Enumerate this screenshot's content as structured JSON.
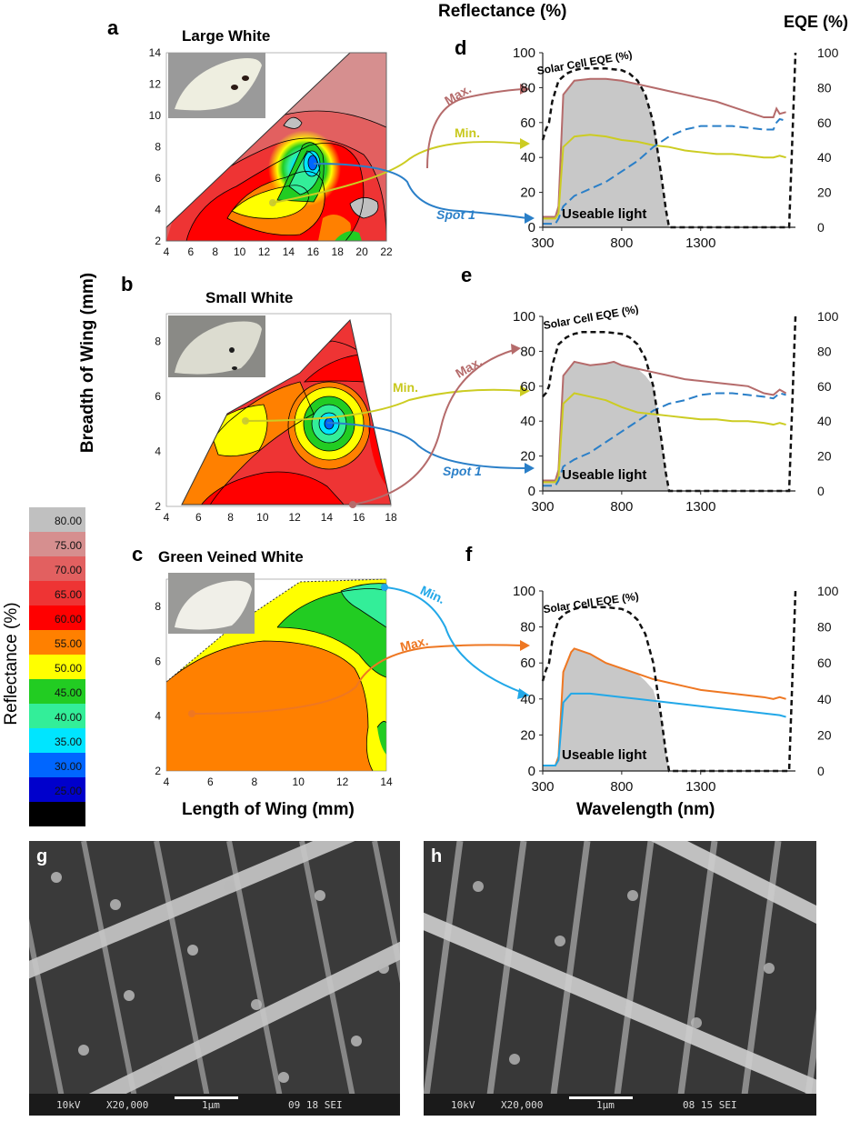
{
  "panels": {
    "a": {
      "letter": "a",
      "title": "Large White"
    },
    "b": {
      "letter": "b",
      "title": "Small White"
    },
    "c": {
      "letter": "c",
      "title": "Green Veined White"
    },
    "d": {
      "letter": "d"
    },
    "e": {
      "letter": "e"
    },
    "f": {
      "letter": "f"
    },
    "g": {
      "letter": "g"
    },
    "h": {
      "letter": "h"
    }
  },
  "axis_labels": {
    "top_reflectance": "Reflectance (%)",
    "top_eqe": "EQE (%)",
    "breadth": "Breadth of Wing (mm)",
    "length": "Length of Wing (mm)",
    "wavelength": "Wavelength (nm)",
    "colorbar": "Reflectance (%)"
  },
  "annotations": {
    "eqe_curve": "Solar Cell EQE (%)",
    "useable": "Useable light",
    "max": "Max.",
    "min": "Min.",
    "spot1": "Spot 1"
  },
  "colorbar": {
    "levels": [
      {
        "label": "80.00",
        "color": "#c0c0c0"
      },
      {
        "label": "75.00",
        "color": "#d68f8f"
      },
      {
        "label": "70.00",
        "color": "#e26060"
      },
      {
        "label": "65.00",
        "color": "#ee3434"
      },
      {
        "label": "60.00",
        "color": "#ff0000"
      },
      {
        "label": "55.00",
        "color": "#ff8000"
      },
      {
        "label": "50.00",
        "color": "#ffff00"
      },
      {
        "label": "45.00",
        "color": "#22cc22"
      },
      {
        "label": "40.00",
        "color": "#33ee99"
      },
      {
        "label": "35.00",
        "color": "#00e5ff"
      },
      {
        "label": "30.00",
        "color": "#0066ff"
      },
      {
        "label": "25.00",
        "color": "#0000cc"
      },
      {
        "label": "",
        "color": "#000000"
      }
    ]
  },
  "chart_data": [
    {
      "panel": "a",
      "type": "heatmap",
      "xlim": [
        4,
        22
      ],
      "ylim": [
        2,
        14
      ],
      "xticks": [
        "4",
        "6",
        "8",
        "10",
        "12",
        "14",
        "16",
        "18",
        "20",
        "22"
      ],
      "yticks": [
        "2",
        "4",
        "6",
        "8",
        "10",
        "12",
        "14"
      ],
      "xlabel": "",
      "ylabel": ""
    },
    {
      "panel": "b",
      "type": "heatmap",
      "xlim": [
        4,
        18
      ],
      "ylim": [
        2,
        9
      ],
      "xticks": [
        "4",
        "6",
        "8",
        "10",
        "12",
        "14",
        "16",
        "18"
      ],
      "yticks": [
        "2",
        "4",
        "6",
        "8"
      ],
      "xlabel": "",
      "ylabel": ""
    },
    {
      "panel": "c",
      "type": "heatmap",
      "xlim": [
        4,
        14
      ],
      "ylim": [
        2,
        9
      ],
      "xticks": [
        "4",
        "6",
        "8",
        "10",
        "12",
        "14"
      ],
      "yticks": [
        "2",
        "4",
        "6",
        "8"
      ],
      "xlabel": "",
      "ylabel": ""
    },
    {
      "panel": "d",
      "type": "line",
      "xlim": [
        300,
        1900
      ],
      "ylim": [
        0,
        100
      ],
      "y2lim": [
        0,
        100
      ],
      "xticks": [
        "300",
        "800",
        "1300"
      ],
      "yticks": [
        "0",
        "20",
        "40",
        "60",
        "80",
        "100"
      ],
      "y2ticks": [
        "0",
        "20",
        "40",
        "60",
        "80",
        "100"
      ],
      "series": [
        {
          "name": "Max.",
          "color": "#b56b6b",
          "dash": false,
          "x": [
            300,
            380,
            400,
            430,
            500,
            600,
            700,
            800,
            900,
            1000,
            1100,
            1200,
            1300,
            1400,
            1500,
            1600,
            1700,
            1760,
            1780,
            1800,
            1840
          ],
          "y": [
            6,
            6,
            12,
            76,
            84,
            85,
            85,
            84,
            82,
            80,
            78,
            76,
            74,
            72,
            69,
            66,
            63,
            63,
            68,
            65,
            66
          ]
        },
        {
          "name": "Min.",
          "color": "#cccc22",
          "dash": false,
          "x": [
            300,
            380,
            400,
            430,
            500,
            600,
            700,
            800,
            900,
            1000,
            1100,
            1200,
            1300,
            1400,
            1500,
            1600,
            1700,
            1760,
            1800,
            1840
          ],
          "y": [
            5,
            5,
            8,
            46,
            52,
            53,
            52,
            50,
            49,
            47,
            46,
            44,
            43,
            42,
            42,
            41,
            40,
            40,
            41,
            40
          ]
        },
        {
          "name": "Spot 1",
          "color": "#2a7fc8",
          "dash": true,
          "x": [
            300,
            380,
            400,
            430,
            500,
            600,
            700,
            800,
            900,
            1000,
            1100,
            1200,
            1300,
            1400,
            1500,
            1600,
            1700,
            1760,
            1780,
            1800,
            1840
          ],
          "y": [
            2,
            2,
            5,
            12,
            18,
            22,
            26,
            32,
            38,
            46,
            52,
            56,
            58,
            58,
            58,
            57,
            56,
            56,
            60,
            62,
            61
          ]
        },
        {
          "name": "Solar Cell EQE (%)",
          "color": "#111111",
          "dash": true,
          "axis": "right",
          "x": [
            300,
            320,
            340,
            360,
            400,
            450,
            500,
            550,
            600,
            700,
            800,
            850,
            900,
            950,
            1000,
            1050,
            1080,
            1100,
            1150,
            1200,
            1300,
            1400,
            1500,
            1600,
            1700,
            1800,
            1860,
            1880,
            1900
          ],
          "y": [
            50,
            56,
            60,
            72,
            84,
            88,
            90,
            91,
            91,
            91,
            90,
            88,
            84,
            76,
            60,
            30,
            10,
            0,
            0,
            0,
            0,
            0,
            0,
            0,
            0,
            0,
            0,
            50,
            100
          ]
        },
        {
          "name": "Useable light",
          "color": "#c8c8c8",
          "area": true,
          "x": [
            300,
            380,
            400,
            430,
            500,
            600,
            700,
            800,
            900,
            950,
            1000,
            1050,
            1080,
            1100
          ],
          "y": [
            6,
            6,
            12,
            76,
            84,
            85,
            85,
            84,
            82,
            76,
            60,
            30,
            10,
            0
          ]
        }
      ]
    },
    {
      "panel": "e",
      "type": "line",
      "xlim": [
        300,
        1900
      ],
      "ylim": [
        0,
        100
      ],
      "y2lim": [
        0,
        100
      ],
      "xticks": [
        "300",
        "800",
        "1300"
      ],
      "yticks": [
        "0",
        "20",
        "40",
        "60",
        "80",
        "100"
      ],
      "y2ticks": [
        "0",
        "20",
        "40",
        "60",
        "80",
        "100"
      ],
      "series": [
        {
          "name": "Max.",
          "color": "#b56b6b",
          "dash": false,
          "x": [
            300,
            380,
            400,
            430,
            500,
            600,
            700,
            750,
            800,
            900,
            1000,
            1100,
            1200,
            1300,
            1400,
            1500,
            1600,
            1700,
            1760,
            1800,
            1840
          ],
          "y": [
            6,
            6,
            12,
            66,
            74,
            72,
            73,
            74,
            72,
            70,
            68,
            66,
            64,
            63,
            62,
            61,
            60,
            56,
            55,
            58,
            56
          ]
        },
        {
          "name": "Min.",
          "color": "#cccc22",
          "dash": false,
          "x": [
            300,
            380,
            400,
            430,
            500,
            600,
            700,
            800,
            900,
            1000,
            1100,
            1200,
            1300,
            1400,
            1500,
            1600,
            1700,
            1760,
            1800,
            1840
          ],
          "y": [
            5,
            5,
            8,
            50,
            56,
            54,
            52,
            48,
            45,
            44,
            43,
            42,
            41,
            41,
            40,
            40,
            39,
            38,
            39,
            38
          ]
        },
        {
          "name": "Spot 1",
          "color": "#2a7fc8",
          "dash": true,
          "x": [
            300,
            380,
            400,
            430,
            500,
            600,
            700,
            800,
            900,
            1000,
            1100,
            1200,
            1300,
            1400,
            1500,
            1600,
            1700,
            1760,
            1800,
            1840
          ],
          "y": [
            3,
            3,
            6,
            14,
            18,
            22,
            28,
            34,
            40,
            46,
            50,
            52,
            55,
            56,
            56,
            55,
            54,
            53,
            56,
            55
          ]
        },
        {
          "name": "Solar Cell EQE (%)",
          "color": "#111111",
          "dash": true,
          "axis": "right",
          "x": [
            300,
            320,
            340,
            360,
            400,
            450,
            500,
            550,
            600,
            700,
            800,
            850,
            900,
            950,
            1000,
            1050,
            1080,
            1100,
            1150,
            1200,
            1300,
            1400,
            1500,
            1600,
            1700,
            1800,
            1860,
            1880,
            1900
          ],
          "y": [
            54,
            56,
            60,
            72,
            84,
            88,
            90,
            91,
            91,
            91,
            90,
            88,
            84,
            76,
            60,
            30,
            10,
            0,
            0,
            0,
            0,
            0,
            0,
            0,
            0,
            0,
            0,
            50,
            100
          ]
        },
        {
          "name": "Useable light",
          "color": "#c8c8c8",
          "area": true,
          "x": [
            300,
            380,
            400,
            430,
            500,
            600,
            700,
            750,
            800,
            900,
            950,
            1000,
            1050,
            1080,
            1100
          ],
          "y": [
            6,
            6,
            12,
            66,
            74,
            72,
            73,
            74,
            72,
            70,
            66,
            60,
            30,
            10,
            0
          ]
        }
      ]
    },
    {
      "panel": "f",
      "type": "line",
      "xlim": [
        300,
        1900
      ],
      "ylim": [
        0,
        100
      ],
      "y2lim": [
        0,
        100
      ],
      "xticks": [
        "300",
        "800",
        "1300"
      ],
      "yticks": [
        "0",
        "20",
        "40",
        "60",
        "80",
        "100"
      ],
      "y2ticks": [
        "0",
        "20",
        "40",
        "60",
        "80",
        "100"
      ],
      "series": [
        {
          "name": "Max.",
          "color": "#ee7722",
          "dash": false,
          "x": [
            300,
            380,
            400,
            430,
            480,
            500,
            600,
            700,
            800,
            900,
            1000,
            1100,
            1200,
            1300,
            1400,
            1500,
            1600,
            1700,
            1760,
            1800,
            1840
          ],
          "y": [
            3,
            3,
            8,
            55,
            66,
            68,
            65,
            60,
            57,
            54,
            51,
            49,
            47,
            45,
            44,
            43,
            42,
            41,
            40,
            41,
            40
          ]
        },
        {
          "name": "Min.",
          "color": "#22a8e8",
          "dash": false,
          "x": [
            300,
            380,
            400,
            430,
            480,
            500,
            600,
            700,
            800,
            900,
            1000,
            1100,
            1200,
            1300,
            1400,
            1500,
            1600,
            1700,
            1800,
            1840
          ],
          "y": [
            3,
            3,
            6,
            38,
            43,
            43,
            43,
            42,
            41,
            40,
            39,
            38,
            37,
            36,
            35,
            34,
            33,
            32,
            31,
            30
          ]
        },
        {
          "name": "Solar Cell EQE (%)",
          "color": "#111111",
          "dash": true,
          "axis": "right",
          "x": [
            300,
            320,
            340,
            360,
            400,
            450,
            500,
            550,
            600,
            700,
            800,
            850,
            900,
            950,
            1000,
            1050,
            1080,
            1100,
            1150,
            1200,
            1300,
            1400,
            1500,
            1600,
            1700,
            1800,
            1860,
            1880,
            1900
          ],
          "y": [
            50,
            56,
            60,
            72,
            84,
            88,
            90,
            91,
            91,
            91,
            90,
            88,
            84,
            76,
            60,
            30,
            10,
            0,
            0,
            0,
            0,
            0,
            0,
            0,
            0,
            0,
            0,
            50,
            100
          ]
        },
        {
          "name": "Useable light",
          "color": "#c8c8c8",
          "area": true,
          "x": [
            300,
            380,
            400,
            430,
            480,
            500,
            600,
            700,
            800,
            900,
            950,
            1000,
            1050,
            1080,
            1100
          ],
          "y": [
            3,
            3,
            8,
            55,
            66,
            68,
            65,
            60,
            57,
            54,
            50,
            45,
            30,
            10,
            0
          ]
        }
      ]
    }
  ],
  "sem": {
    "g": {
      "kv": "10kV",
      "mag": "X20,000",
      "scale": "1μm",
      "info": "09 18 SEI"
    },
    "h": {
      "kv": "10kV",
      "mag": "X20,000",
      "scale": "1μm",
      "info": "08 15 SEI"
    }
  }
}
